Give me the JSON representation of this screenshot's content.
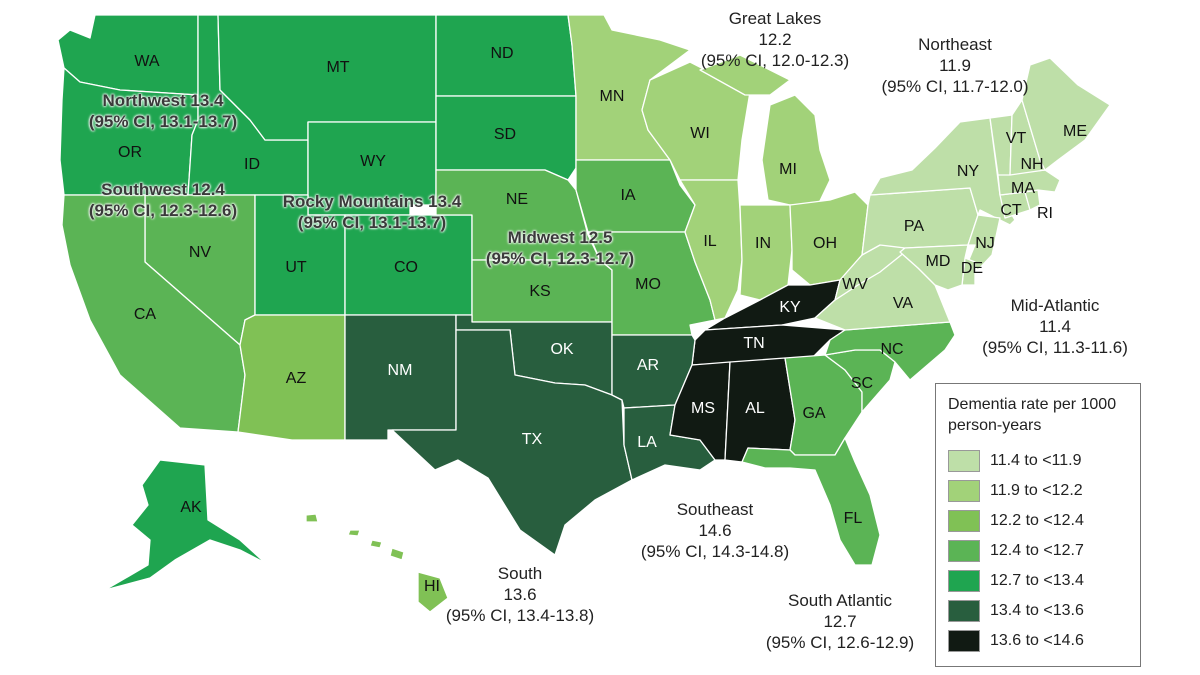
{
  "legend": {
    "title_line1": "Dementia rate per 1000",
    "title_line2": "person-years",
    "bins": [
      {
        "label": "11.4 to <11.9",
        "color": "#bedfa8"
      },
      {
        "label": "11.9 to <12.2",
        "color": "#a2d279"
      },
      {
        "label": "12.2 to <12.4",
        "color": "#80c155"
      },
      {
        "label": "12.4 to <12.7",
        "color": "#5bb455"
      },
      {
        "label": "12.7  to <13.4",
        "color": "#1fa550"
      },
      {
        "label": "13.4 to <13.6",
        "color": "#285e3e"
      },
      {
        "label": "13.6 to <14.6",
        "color": "#111a13"
      }
    ]
  },
  "regions": {
    "northwest": {
      "name": "Northwest 13.4",
      "ci": "(95% CI, 13.1-13.7)"
    },
    "southwest": {
      "name": "Southwest 12.4",
      "ci": "(95% CI, 12.3-12.6)"
    },
    "rocky_mountains": {
      "name": "Rocky Mountains 13.4",
      "ci": "(95% CI, 13.1-13.7)"
    },
    "midwest": {
      "name": "Midwest 12.5",
      "ci": "(95% CI, 12.3-12.7)"
    },
    "great_lakes": {
      "name": "Great Lakes",
      "rate": "12.2",
      "ci": "(95% CI, 12.0-12.3)"
    },
    "northeast": {
      "name": "Northeast",
      "rate": "11.9",
      "ci": "(95% CI, 11.7-12.0)"
    },
    "mid_atlantic": {
      "name": "Mid-Atlantic",
      "rate": "11.4",
      "ci": "(95% CI, 11.3-11.6)"
    },
    "southeast": {
      "name": "Southeast",
      "rate": "14.6",
      "ci": "(95% CI, 14.3-14.8)"
    },
    "south": {
      "name": "South",
      "rate": "13.6",
      "ci": "(95% CI, 13.4-13.8)"
    },
    "south_atlantic": {
      "name": "South Atlantic",
      "rate": "12.7",
      "ci": "(95% CI, 12.6-12.9)"
    }
  },
  "states": {
    "WA": {
      "label": "WA",
      "bin": 4
    },
    "OR": {
      "label": "OR",
      "bin": 4
    },
    "ID": {
      "label": "ID",
      "bin": 4
    },
    "MT": {
      "label": "MT",
      "bin": 4
    },
    "WY": {
      "label": "WY",
      "bin": 4
    },
    "UT": {
      "label": "UT",
      "bin": 4
    },
    "CO": {
      "label": "CO",
      "bin": 4
    },
    "ND": {
      "label": "ND",
      "bin": 4
    },
    "SD": {
      "label": "SD",
      "bin": 4
    },
    "CA": {
      "label": "CA",
      "bin": 3
    },
    "NV": {
      "label": "NV",
      "bin": 3
    },
    "AZ": {
      "label": "AZ",
      "bin": 2
    },
    "HI": {
      "label": "HI",
      "bin": 2
    },
    "NE": {
      "label": "NE",
      "bin": 3
    },
    "KS": {
      "label": "KS",
      "bin": 3
    },
    "IA": {
      "label": "IA",
      "bin": 3
    },
    "MO": {
      "label": "MO",
      "bin": 3
    },
    "MN": {
      "label": "MN",
      "bin": 1
    },
    "WI": {
      "label": "WI",
      "bin": 1
    },
    "MI": {
      "label": "MI",
      "bin": 1
    },
    "IL": {
      "label": "IL",
      "bin": 1
    },
    "IN": {
      "label": "IN",
      "bin": 1
    },
    "OH": {
      "label": "OH",
      "bin": 1
    },
    "ME": {
      "label": "ME",
      "bin": 0
    },
    "NY": {
      "label": "NY",
      "bin": 0
    },
    "VT": {
      "label": "VT",
      "bin": 0
    },
    "NH": {
      "label": "NH",
      "bin": 0
    },
    "MA": {
      "label": "MA",
      "bin": 0
    },
    "CT": {
      "label": "CT",
      "bin": 0
    },
    "RI": {
      "label": "RI",
      "bin": 0
    },
    "PA": {
      "label": "PA",
      "bin": 0
    },
    "NJ": {
      "label": "NJ",
      "bin": 0
    },
    "MD": {
      "label": "MD",
      "bin": 0
    },
    "DE": {
      "label": "DE",
      "bin": 0
    },
    "WV": {
      "label": "WV",
      "bin": 0
    },
    "VA": {
      "label": "VA",
      "bin": 0
    },
    "NC": {
      "label": "NC",
      "bin": 3
    },
    "SC": {
      "label": "SC",
      "bin": 3
    },
    "GA": {
      "label": "GA",
      "bin": 3
    },
    "FL": {
      "label": "FL",
      "bin": 3
    },
    "NM": {
      "label": "NM",
      "bin": 5
    },
    "OK": {
      "label": "OK",
      "bin": 5
    },
    "TX": {
      "label": "TX",
      "bin": 5
    },
    "AR": {
      "label": "AR",
      "bin": 5
    },
    "LA": {
      "label": "LA",
      "bin": 5
    },
    "KY": {
      "label": "KY",
      "bin": 6
    },
    "TN": {
      "label": "TN",
      "bin": 6
    },
    "MS": {
      "label": "MS",
      "bin": 6
    },
    "AL": {
      "label": "AL",
      "bin": 6
    },
    "AK": {
      "label": "AK",
      "bin": 4
    }
  }
}
